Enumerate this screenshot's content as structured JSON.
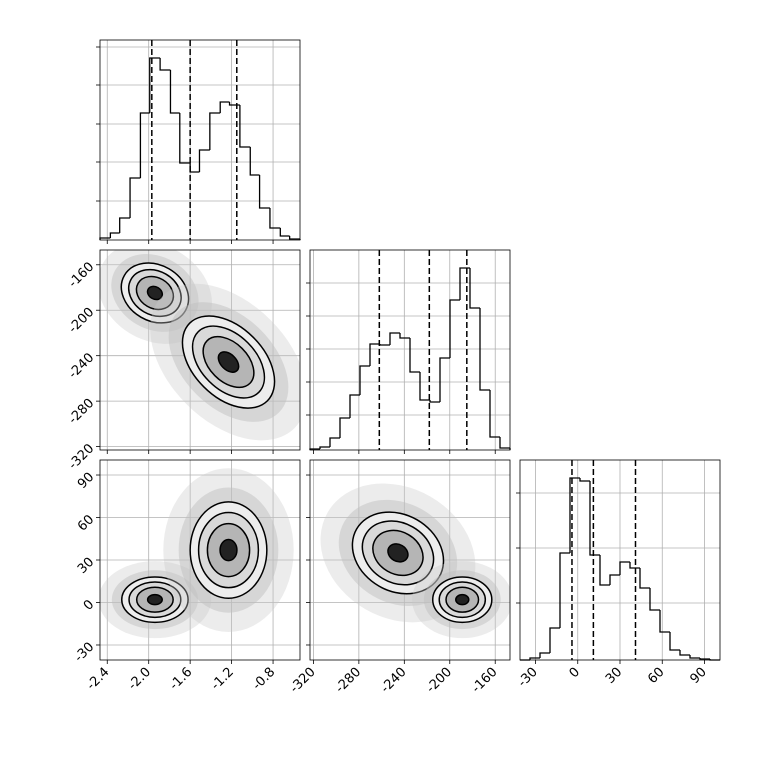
{
  "chart_data": [
    {
      "type": "histogram",
      "color": "#000000",
      "bins": [
        -2.47,
        -2.37,
        -2.28,
        -2.18,
        -2.08,
        -1.99,
        -1.89,
        -1.79,
        -1.7,
        -1.6,
        -1.51,
        -1.41,
        -1.31,
        -1.22,
        -1.12,
        -1.02,
        -0.93,
        -0.83,
        -0.73,
        -0.64,
        -0.54
      ],
      "values": [
        2,
        7,
        22,
        62,
        127,
        182,
        170,
        127,
        77,
        68,
        90,
        127,
        138,
        135,
        93,
        65,
        32,
        12,
        4,
        1
      ],
      "quantiles": [
        -1.97,
        -1.6,
        -1.15
      ],
      "xlim": [
        -2.47,
        -0.54
      ],
      "ylim": [
        0,
        200
      ],
      "xticks": [
        -2.4,
        {
          "value": -2.0,
          "label": "-2.0"
        },
        -1.6,
        -1.2,
        -0.8
      ],
      "yticks": [
        39,
        78,
        116,
        155,
        193
      ],
      "x_labels": false,
      "y_labels": false
    },
    {
      "type": "contour",
      "contours": [
        {
          "x": -1.94,
          "y": -184.8,
          "rx": 0.34,
          "ry": 24.6,
          "angle": 30
        },
        {
          "x": -1.23,
          "y": -245.6,
          "rx": 0.53,
          "ry": 30.8,
          "angle": 45
        }
      ],
      "levels": [
        1,
        0.78,
        0.55,
        0.22
      ],
      "xlim": [
        -2.47,
        -0.54
      ],
      "ylim": [
        -323,
        -147
      ],
      "xticks": [
        -2.4,
        {
          "value": -2.0,
          "label": "-2.0"
        },
        -1.6,
        -1.2,
        -0.8
      ],
      "yticks": [
        -320,
        -280,
        -240,
        -200,
        -160
      ],
      "x_labels": false,
      "y_labels": true
    },
    {
      "type": "histogram",
      "color": "#000000",
      "bins": [
        -323,
        -314.2,
        -305.4,
        -296.6,
        -287.8,
        -279,
        -270.2,
        -261.4,
        -252.6,
        -243.8,
        -235,
        -226.2,
        -217.4,
        -208.6,
        -199.8,
        -191,
        -182.2,
        -173.4,
        -164.6,
        -155.8,
        -147
      ],
      "values": [
        1,
        3,
        12,
        32,
        55,
        84,
        106,
        105,
        117,
        112,
        78,
        50,
        48,
        92,
        150,
        182,
        142,
        60,
        13,
        2
      ],
      "quantiles": [
        -262,
        -218,
        -185
      ],
      "xlim": [
        -323,
        -147
      ],
      "ylim": [
        0,
        200
      ],
      "xticks": [
        -320,
        -280,
        -240,
        -200,
        -160
      ],
      "yticks": [
        35,
        68,
        101,
        134,
        167
      ],
      "x_labels": false,
      "y_labels": false
    },
    {
      "type": "contour",
      "contours": [
        {
          "x": -1.94,
          "y": 2,
          "rx": 0.32,
          "ry": 16,
          "angle": 0
        },
        {
          "x": -1.23,
          "y": 37,
          "rx": 0.37,
          "ry": 34,
          "angle": 0
        }
      ],
      "levels": [
        1,
        0.78,
        0.55,
        0.22
      ],
      "xlim": [
        -2.47,
        -0.54
      ],
      "ylim": [
        -40.6,
        100.6
      ],
      "xticks": [
        -2.4,
        {
          "value": -2.0,
          "label": "-2.0"
        },
        -1.6,
        -1.2,
        -0.8
      ],
      "yticks": [
        -30,
        0,
        30,
        60,
        90
      ],
      "x_labels": true,
      "y_labels": true
    },
    {
      "type": "contour",
      "contours": [
        {
          "x": -245.6,
          "y": 35,
          "rx": 42,
          "ry": 27,
          "angle": 30
        },
        {
          "x": -189,
          "y": 2,
          "rx": 26,
          "ry": 16,
          "angle": 0
        }
      ],
      "levels": [
        1,
        0.78,
        0.55,
        0.22
      ],
      "xlim": [
        -323,
        -147
      ],
      "ylim": [
        -40.6,
        100.6
      ],
      "xticks": [
        -320,
        -280,
        -240,
        -200,
        -160
      ],
      "yticks": [
        -30,
        0,
        30,
        60,
        90
      ],
      "x_labels": true,
      "y_labels": false
    },
    {
      "type": "histogram",
      "color": "#000000",
      "bins": [
        -41,
        -33.9,
        -26.8,
        -19.7,
        -12.6,
        -5.5,
        1.6,
        8.7,
        15.8,
        22.9,
        30,
        37.1,
        44.2,
        51.3,
        58.4,
        65.5,
        72.6,
        79.7,
        86.8,
        93.9,
        101
      ],
      "values": [
        0,
        2,
        7,
        32,
        107,
        182,
        179,
        105,
        75,
        85,
        98,
        92,
        72,
        50,
        28,
        10,
        5,
        2,
        1,
        0
      ],
      "quantiles": [
        -4.1,
        11.1,
        41
      ],
      "xlim": [
        -41,
        101
      ],
      "ylim": [
        0,
        200
      ],
      "xticks": [
        -30,
        0,
        30,
        60,
        90
      ],
      "yticks": [
        57,
        112,
        167
      ],
      "x_labels": true,
      "y_labels": false
    }
  ]
}
